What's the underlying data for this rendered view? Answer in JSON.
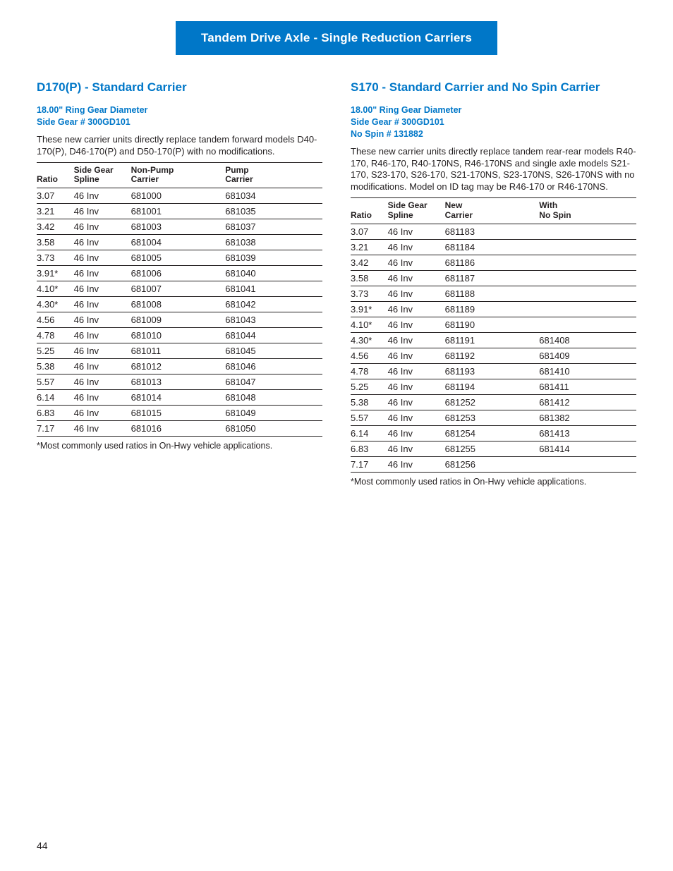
{
  "banner": "Tandem Drive Axle - Single Reduction Carriers",
  "pageNumber": "44",
  "left": {
    "title": "D170(P) - Standard Carrier",
    "subheads": [
      "18.00\" Ring Gear Diameter",
      "Side Gear # 300GD101"
    ],
    "desc": "These new carrier units directly replace tandem forward models D40-170(P), D46-170(P) and D50-170(P) with no modifications.",
    "headers": {
      "ratio": "Ratio",
      "spline": "Side Gear\nSpline",
      "c1": "Non-Pump\nCarrier",
      "c2": "Pump\nCarrier"
    },
    "rows": [
      {
        "ratio": "3.07",
        "spline": "46 Inv",
        "c1": "681000",
        "c2": "681034"
      },
      {
        "ratio": "3.21",
        "spline": "46 Inv",
        "c1": "681001",
        "c2": "681035"
      },
      {
        "ratio": "3.42",
        "spline": "46 Inv",
        "c1": "681003",
        "c2": "681037"
      },
      {
        "ratio": "3.58",
        "spline": "46 Inv",
        "c1": "681004",
        "c2": "681038"
      },
      {
        "ratio": "3.73",
        "spline": "46 Inv",
        "c1": "681005",
        "c2": "681039"
      },
      {
        "ratio": "3.91*",
        "spline": "46 Inv",
        "c1": "681006",
        "c2": "681040"
      },
      {
        "ratio": "4.10*",
        "spline": "46 Inv",
        "c1": "681007",
        "c2": "681041"
      },
      {
        "ratio": "4.30*",
        "spline": "46 Inv",
        "c1": "681008",
        "c2": "681042"
      },
      {
        "ratio": "4.56",
        "spline": "46 Inv",
        "c1": "681009",
        "c2": "681043"
      },
      {
        "ratio": "4.78",
        "spline": "46 Inv",
        "c1": "681010",
        "c2": "681044"
      },
      {
        "ratio": "5.25",
        "spline": "46 Inv",
        "c1": "681011",
        "c2": "681045"
      },
      {
        "ratio": "5.38",
        "spline": "46 Inv",
        "c1": "681012",
        "c2": "681046"
      },
      {
        "ratio": "5.57",
        "spline": "46 Inv",
        "c1": "681013",
        "c2": "681047"
      },
      {
        "ratio": "6.14",
        "spline": "46 Inv",
        "c1": "681014",
        "c2": "681048"
      },
      {
        "ratio": "6.83",
        "spline": "46 Inv",
        "c1": "681015",
        "c2": "681049"
      },
      {
        "ratio": "7.17",
        "spline": "46 Inv",
        "c1": "681016",
        "c2": "681050"
      }
    ],
    "footnote": "*Most commonly used ratios in On-Hwy vehicle applications."
  },
  "right": {
    "title": "S170 - Standard Carrier and No Spin Carrier",
    "subheads": [
      "18.00\" Ring Gear Diameter",
      "Side Gear # 300GD101",
      "No Spin # 131882"
    ],
    "desc": "These new carrier units directly replace tandem rear-rear models R40-170, R46-170, R40-170NS, R46-170NS and single axle models S21-170, S23-170, S26-170, S21-170NS, S23-170NS, S26-170NS with no modifications. Model on ID tag may be R46-170 or R46-170NS.",
    "headers": {
      "ratio": "Ratio",
      "spline": "Side Gear\nSpline",
      "c1": "New\nCarrier",
      "c2": "With\nNo Spin"
    },
    "rows": [
      {
        "ratio": "3.07",
        "spline": "46 Inv",
        "c1": "681183",
        "c2": ""
      },
      {
        "ratio": "3.21",
        "spline": "46 Inv",
        "c1": "681184",
        "c2": ""
      },
      {
        "ratio": "3.42",
        "spline": "46 Inv",
        "c1": "681186",
        "c2": ""
      },
      {
        "ratio": "3.58",
        "spline": "46 Inv",
        "c1": "681187",
        "c2": ""
      },
      {
        "ratio": "3.73",
        "spline": "46 Inv",
        "c1": "681188",
        "c2": ""
      },
      {
        "ratio": "3.91*",
        "spline": "46 Inv",
        "c1": "681189",
        "c2": ""
      },
      {
        "ratio": "4.10*",
        "spline": "46 Inv",
        "c1": "681190",
        "c2": ""
      },
      {
        "ratio": "4.30*",
        "spline": "46 Inv",
        "c1": "681191",
        "c2": "681408"
      },
      {
        "ratio": "4.56",
        "spline": "46 Inv",
        "c1": "681192",
        "c2": "681409"
      },
      {
        "ratio": "4.78",
        "spline": "46 Inv",
        "c1": "681193",
        "c2": "681410"
      },
      {
        "ratio": "5.25",
        "spline": "46 Inv",
        "c1": "681194",
        "c2": "681411"
      },
      {
        "ratio": "5.38",
        "spline": "46 Inv",
        "c1": "681252",
        "c2": "681412"
      },
      {
        "ratio": "5.57",
        "spline": "46 Inv",
        "c1": "681253",
        "c2": "681382"
      },
      {
        "ratio": "6.14",
        "spline": "46 Inv",
        "c1": "681254",
        "c2": "681413"
      },
      {
        "ratio": "6.83",
        "spline": "46 Inv",
        "c1": "681255",
        "c2": "681414"
      },
      {
        "ratio": "7.17",
        "spline": "46 Inv",
        "c1": "681256",
        "c2": ""
      }
    ],
    "footnote": "*Most commonly used ratios in On-Hwy vehicle applications."
  }
}
